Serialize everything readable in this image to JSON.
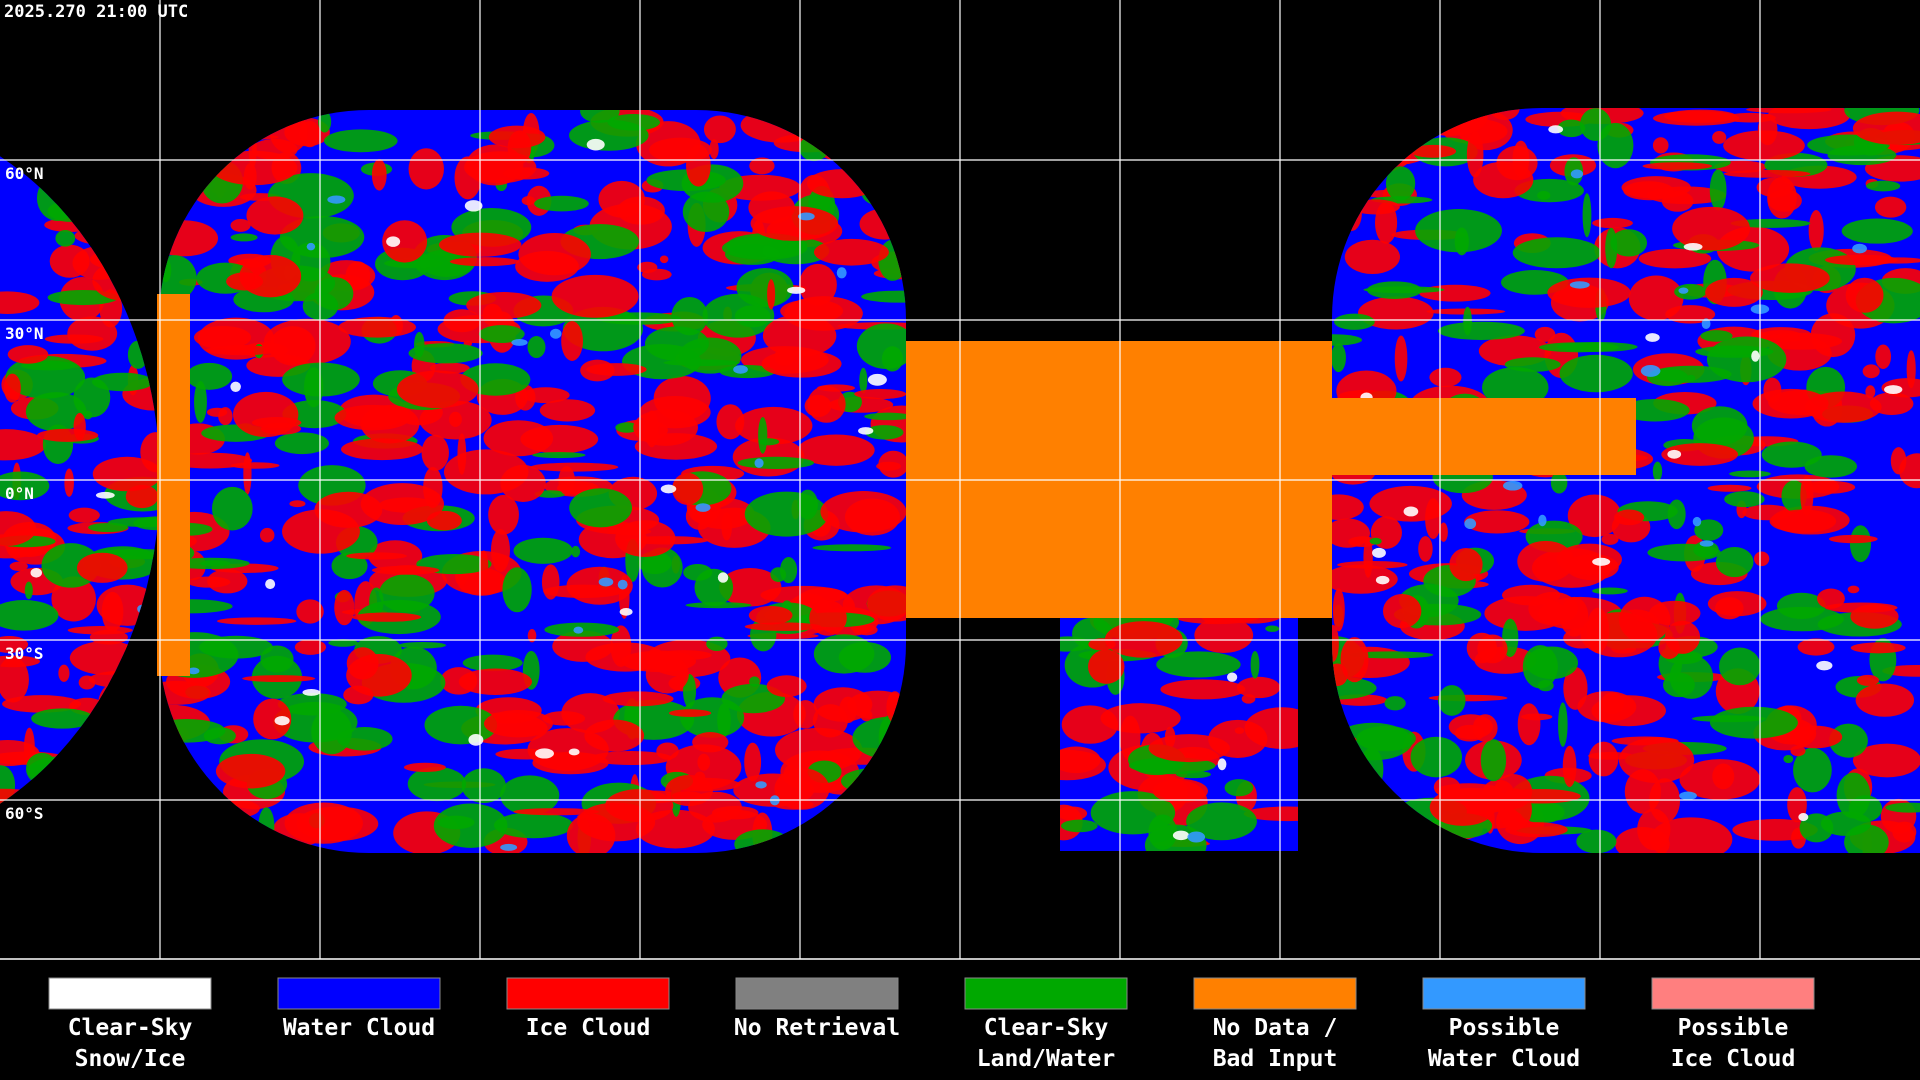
{
  "header": {
    "timestamp": "2025.270 21:00 UTC"
  },
  "map": {
    "latitude_labels": [
      "60°N",
      "30°N",
      "0°N",
      "30°S",
      "60°S"
    ]
  },
  "legend": [
    {
      "color": "#ffffff",
      "label": [
        "Clear-Sky",
        "Snow/Ice"
      ]
    },
    {
      "color": "#0000ff",
      "label": [
        "Water Cloud"
      ]
    },
    {
      "color": "#ff0000",
      "label": [
        "Ice Cloud"
      ]
    },
    {
      "color": "#808080",
      "label": [
        "No Retrieval"
      ]
    },
    {
      "color": "#00a800",
      "label": [
        "Clear-Sky",
        "Land/Water"
      ]
    },
    {
      "color": "#ff8000",
      "label": [
        "No Data /",
        "Bad Input"
      ]
    },
    {
      "color": "#3399ff",
      "label": [
        "Possible",
        "Water Cloud"
      ]
    },
    {
      "color": "#ff7f7f",
      "label": [
        "Possible",
        "Ice Cloud"
      ]
    }
  ]
}
